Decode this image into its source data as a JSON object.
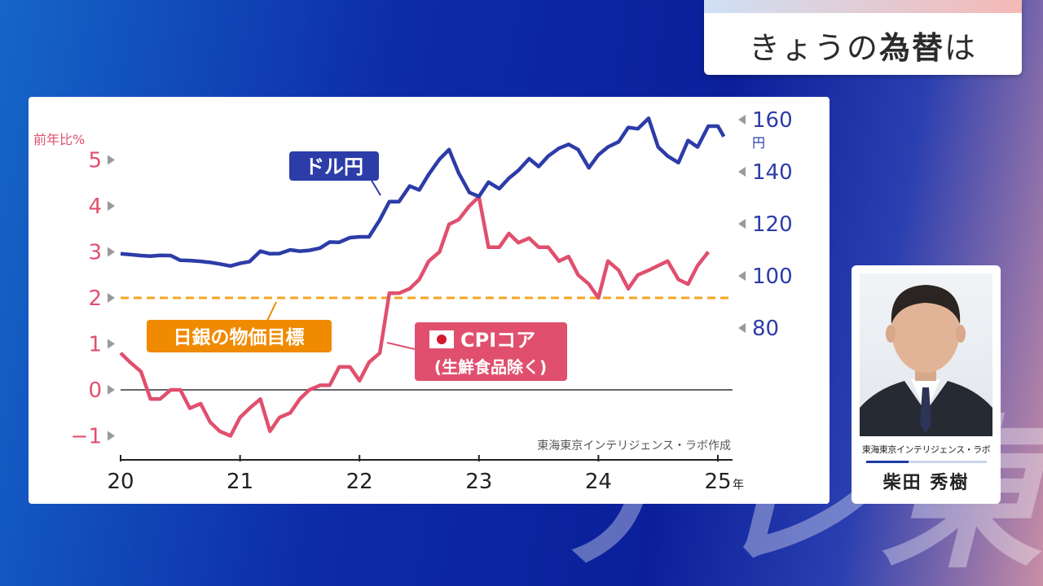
{
  "title": {
    "prefix": "きょうの",
    "emph": "為替",
    "suffix": "は"
  },
  "watermark": "テレ東",
  "presenter": {
    "organization": "東海東京インテリジェンス・ラボ",
    "name": "柴田 秀樹"
  },
  "colors": {
    "usd_jpy": "#2c3ca8",
    "cpi": "#e0506e",
    "target": "#f5a623",
    "target_label_bg": "#f08a00"
  },
  "chart_data": {
    "type": "line",
    "source": "東海東京インテリジェンス・ラボ作成",
    "x_ticks": [
      "20",
      "21",
      "22",
      "23",
      "24",
      "25"
    ],
    "x_unit": "年",
    "x_range": [
      2020,
      2025.05
    ],
    "left_axis": {
      "label": "前年比%",
      "ticks": [
        "5",
        "4",
        "3",
        "2",
        "1",
        "0",
        "−1"
      ],
      "range": [
        -1,
        5
      ]
    },
    "right_axis": {
      "unit": "円",
      "ticks": [
        "160",
        "140",
        "120",
        "100",
        "80"
      ],
      "range": [
        80,
        160
      ]
    },
    "target_line": {
      "value": 2,
      "label": "日銀の物価目標"
    },
    "series": [
      {
        "name": "ドル円",
        "axis": "right",
        "points": [
          [
            2020.0,
            108.5
          ],
          [
            2020.08,
            108.2
          ],
          [
            2020.17,
            107.8
          ],
          [
            2020.25,
            107.6
          ],
          [
            2020.33,
            107.9
          ],
          [
            2020.42,
            107.8
          ],
          [
            2020.5,
            106.0
          ],
          [
            2020.58,
            105.9
          ],
          [
            2020.67,
            105.6
          ],
          [
            2020.75,
            105.2
          ],
          [
            2020.83,
            104.6
          ],
          [
            2020.92,
            103.8
          ],
          [
            2021.0,
            104.8
          ],
          [
            2021.08,
            105.5
          ],
          [
            2021.17,
            109.5
          ],
          [
            2021.25,
            108.5
          ],
          [
            2021.33,
            108.6
          ],
          [
            2021.42,
            110.0
          ],
          [
            2021.5,
            109.5
          ],
          [
            2021.58,
            109.8
          ],
          [
            2021.67,
            110.7
          ],
          [
            2021.75,
            113.0
          ],
          [
            2021.83,
            112.9
          ],
          [
            2021.92,
            114.7
          ],
          [
            2022.0,
            115.0
          ],
          [
            2022.08,
            115.0
          ],
          [
            2022.17,
            121.5
          ],
          [
            2022.25,
            128.5
          ],
          [
            2022.33,
            128.5
          ],
          [
            2022.42,
            134.5
          ],
          [
            2022.5,
            133.0
          ],
          [
            2022.58,
            139.0
          ],
          [
            2022.67,
            144.8
          ],
          [
            2022.75,
            148.5
          ],
          [
            2022.83,
            139.5
          ],
          [
            2022.92,
            132.0
          ],
          [
            2023.0,
            130.5
          ],
          [
            2023.08,
            136.0
          ],
          [
            2023.17,
            133.5
          ],
          [
            2023.25,
            137.5
          ],
          [
            2023.33,
            140.5
          ],
          [
            2023.42,
            145.0
          ],
          [
            2023.5,
            142.0
          ],
          [
            2023.58,
            146.0
          ],
          [
            2023.67,
            149.0
          ],
          [
            2023.75,
            150.5
          ],
          [
            2023.83,
            148.5
          ],
          [
            2023.92,
            141.5
          ],
          [
            2024.0,
            146.5
          ],
          [
            2024.08,
            149.5
          ],
          [
            2024.17,
            151.5
          ],
          [
            2024.25,
            157.0
          ],
          [
            2024.33,
            156.5
          ],
          [
            2024.42,
            160.5
          ],
          [
            2024.5,
            149.5
          ],
          [
            2024.58,
            146.0
          ],
          [
            2024.67,
            143.5
          ],
          [
            2024.75,
            152.0
          ],
          [
            2024.83,
            149.5
          ],
          [
            2024.92,
            157.5
          ],
          [
            2025.0,
            157.5
          ],
          [
            2025.05,
            153.5
          ]
        ]
      },
      {
        "name": "CPIコア",
        "note": "(生鮮食品除く)",
        "axis": "left",
        "points": [
          [
            2020.0,
            0.8
          ],
          [
            2020.08,
            0.6
          ],
          [
            2020.17,
            0.4
          ],
          [
            2020.25,
            -0.2
          ],
          [
            2020.33,
            -0.2
          ],
          [
            2020.42,
            0.0
          ],
          [
            2020.5,
            0.0
          ],
          [
            2020.58,
            -0.4
          ],
          [
            2020.67,
            -0.3
          ],
          [
            2020.75,
            -0.7
          ],
          [
            2020.83,
            -0.9
          ],
          [
            2020.92,
            -1.0
          ],
          [
            2021.0,
            -0.6
          ],
          [
            2021.08,
            -0.4
          ],
          [
            2021.17,
            -0.2
          ],
          [
            2021.25,
            -0.9
          ],
          [
            2021.33,
            -0.6
          ],
          [
            2021.42,
            -0.5
          ],
          [
            2021.5,
            -0.2
          ],
          [
            2021.58,
            0.0
          ],
          [
            2021.67,
            0.1
          ],
          [
            2021.75,
            0.1
          ],
          [
            2021.83,
            0.5
          ],
          [
            2021.92,
            0.5
          ],
          [
            2022.0,
            0.2
          ],
          [
            2022.08,
            0.6
          ],
          [
            2022.17,
            0.8
          ],
          [
            2022.25,
            2.1
          ],
          [
            2022.33,
            2.1
          ],
          [
            2022.42,
            2.2
          ],
          [
            2022.5,
            2.4
          ],
          [
            2022.58,
            2.8
          ],
          [
            2022.67,
            3.0
          ],
          [
            2022.75,
            3.6
          ],
          [
            2022.83,
            3.7
          ],
          [
            2022.92,
            4.0
          ],
          [
            2023.0,
            4.2
          ],
          [
            2023.08,
            3.1
          ],
          [
            2023.17,
            3.1
          ],
          [
            2023.25,
            3.4
          ],
          [
            2023.33,
            3.2
          ],
          [
            2023.42,
            3.3
          ],
          [
            2023.5,
            3.1
          ],
          [
            2023.58,
            3.1
          ],
          [
            2023.67,
            2.8
          ],
          [
            2023.75,
            2.9
          ],
          [
            2023.83,
            2.5
          ],
          [
            2023.92,
            2.3
          ],
          [
            2024.0,
            2.0
          ],
          [
            2024.08,
            2.8
          ],
          [
            2024.17,
            2.6
          ],
          [
            2024.25,
            2.2
          ],
          [
            2024.33,
            2.5
          ],
          [
            2024.42,
            2.6
          ],
          [
            2024.5,
            2.7
          ],
          [
            2024.58,
            2.8
          ],
          [
            2024.67,
            2.4
          ],
          [
            2024.75,
            2.3
          ],
          [
            2024.83,
            2.7
          ],
          [
            2024.92,
            3.0
          ]
        ]
      }
    ]
  }
}
